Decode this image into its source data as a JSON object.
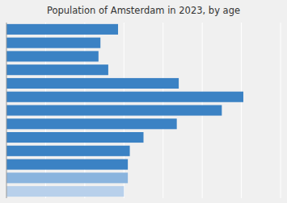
{
  "chart_data": {
    "type": "bar",
    "orientation": "horizontal",
    "title": "Population of Amsterdam in 2023, by age",
    "values": [
      57000,
      48000,
      47000,
      52000,
      88000,
      121000,
      110000,
      87000,
      70000,
      63000,
      62000,
      62000,
      60000
    ],
    "colors": [
      "#3b82c4",
      "#3b82c4",
      "#3b82c4",
      "#3b82c4",
      "#3b82c4",
      "#3b82c4",
      "#3b82c4",
      "#3b82c4",
      "#3b82c4",
      "#3b82c4",
      "#3b82c4",
      "#8ab4de",
      "#b8d0eb"
    ],
    "xlim": [
      0,
      140000
    ],
    "xticks": [
      20000,
      40000,
      60000,
      80000,
      100000,
      120000,
      140000
    ],
    "grid": true,
    "tick_labels": false
  }
}
